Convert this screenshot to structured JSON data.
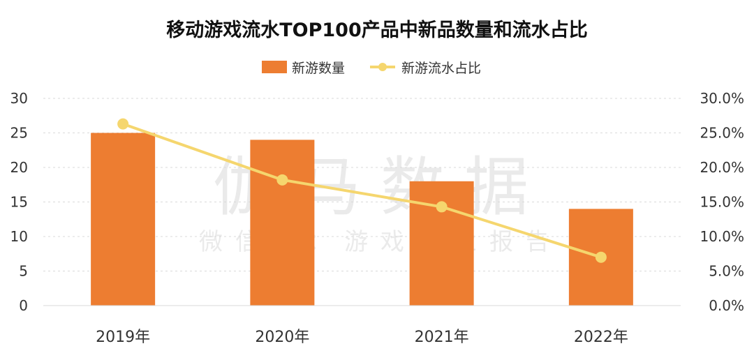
{
  "chart_data": {
    "type": "bar",
    "title": "移动游戏流水TOP100产品中新品数量和流水占比",
    "categories": [
      "2019年",
      "2020年",
      "2021年",
      "2022年"
    ],
    "series": [
      {
        "name": "新游数量",
        "kind": "bar",
        "axis": "left",
        "color": "#ed7d31",
        "values": [
          25,
          24,
          18,
          14
        ]
      },
      {
        "name": "新游流水占比",
        "kind": "line",
        "axis": "right",
        "color": "#f5d66e",
        "values": [
          26.3,
          18.2,
          14.3,
          7.0
        ]
      }
    ],
    "y_left": {
      "min": 0,
      "max": 30,
      "ticks": [
        "0",
        "5",
        "10",
        "15",
        "20",
        "25",
        "30"
      ]
    },
    "y_right": {
      "min": 0,
      "max": 30,
      "ticks": [
        "0.0%",
        "5.0%",
        "10.0%",
        "15.0%",
        "20.0%",
        "25.0%",
        "30.0%"
      ]
    },
    "grid": true,
    "legend_position": "top-center"
  },
  "watermark": {
    "main": "伽马数据",
    "sub": "微信号：游戏产业报告"
  }
}
